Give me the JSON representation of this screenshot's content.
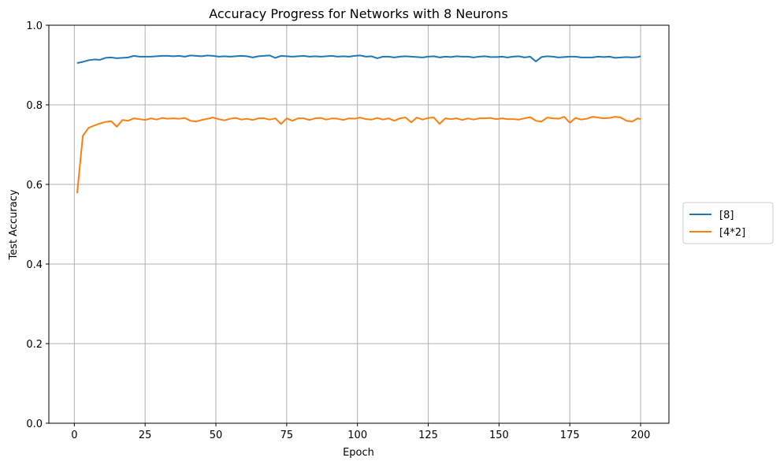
{
  "chart_data": {
    "type": "line",
    "title": "Accuracy Progress for Networks with 8 Neurons",
    "xlabel": "Epoch",
    "ylabel": "Test Accuracy",
    "xlim": [
      -9,
      210
    ],
    "ylim": [
      0.0,
      1.0
    ],
    "xticks": [
      0,
      25,
      50,
      75,
      100,
      125,
      150,
      175,
      200
    ],
    "xtick_labels": [
      "0",
      "25",
      "50",
      "75",
      "100",
      "125",
      "150",
      "175",
      "200"
    ],
    "yticks": [
      0.0,
      0.2,
      0.4,
      0.6,
      0.8,
      1.0
    ],
    "ytick_labels": [
      "0.0",
      "0.2",
      "0.4",
      "0.6",
      "0.8",
      "1.0"
    ],
    "grid": true,
    "legend_position": "outside right, center",
    "x": [
      1,
      3,
      5,
      7,
      9,
      11,
      13,
      15,
      17,
      19,
      21,
      23,
      25,
      27,
      29,
      31,
      33,
      35,
      37,
      39,
      41,
      43,
      45,
      47,
      49,
      51,
      53,
      55,
      57,
      59,
      61,
      63,
      65,
      67,
      69,
      71,
      73,
      75,
      77,
      79,
      81,
      83,
      85,
      87,
      89,
      91,
      93,
      95,
      97,
      99,
      101,
      103,
      105,
      107,
      109,
      111,
      113,
      115,
      117,
      119,
      121,
      123,
      125,
      127,
      129,
      131,
      133,
      135,
      137,
      139,
      141,
      143,
      145,
      147,
      149,
      151,
      153,
      155,
      157,
      159,
      161,
      163,
      165,
      167,
      169,
      171,
      173,
      175,
      177,
      179,
      181,
      183,
      185,
      187,
      189,
      191,
      193,
      195,
      197,
      199,
      200
    ],
    "series": [
      {
        "name": "[8]",
        "color": "#1f77b4",
        "values": [
          0.905,
          0.908,
          0.912,
          0.914,
          0.913,
          0.918,
          0.919,
          0.917,
          0.918,
          0.919,
          0.923,
          0.921,
          0.921,
          0.921,
          0.922,
          0.923,
          0.923,
          0.922,
          0.923,
          0.921,
          0.924,
          0.923,
          0.922,
          0.924,
          0.923,
          0.921,
          0.922,
          0.921,
          0.922,
          0.923,
          0.922,
          0.919,
          0.922,
          0.923,
          0.924,
          0.918,
          0.923,
          0.922,
          0.921,
          0.922,
          0.923,
          0.921,
          0.922,
          0.921,
          0.922,
          0.923,
          0.921,
          0.922,
          0.921,
          0.923,
          0.924,
          0.921,
          0.922,
          0.917,
          0.921,
          0.921,
          0.919,
          0.921,
          0.922,
          0.921,
          0.92,
          0.919,
          0.921,
          0.922,
          0.919,
          0.921,
          0.92,
          0.922,
          0.921,
          0.921,
          0.919,
          0.921,
          0.922,
          0.92,
          0.92,
          0.921,
          0.919,
          0.921,
          0.922,
          0.919,
          0.921,
          0.909,
          0.92,
          0.922,
          0.921,
          0.919,
          0.92,
          0.921,
          0.921,
          0.919,
          0.919,
          0.919,
          0.921,
          0.92,
          0.921,
          0.918,
          0.919,
          0.92,
          0.919,
          0.92,
          0.922
        ]
      },
      {
        "name": "[4*2]",
        "color": "#ff7f0e",
        "values": [
          0.578,
          0.722,
          0.742,
          0.748,
          0.753,
          0.757,
          0.759,
          0.745,
          0.762,
          0.76,
          0.766,
          0.764,
          0.762,
          0.766,
          0.763,
          0.767,
          0.765,
          0.766,
          0.765,
          0.767,
          0.76,
          0.758,
          0.762,
          0.765,
          0.768,
          0.764,
          0.761,
          0.765,
          0.767,
          0.763,
          0.765,
          0.762,
          0.766,
          0.766,
          0.763,
          0.766,
          0.752,
          0.766,
          0.76,
          0.766,
          0.766,
          0.762,
          0.766,
          0.767,
          0.763,
          0.766,
          0.765,
          0.762,
          0.766,
          0.765,
          0.768,
          0.764,
          0.763,
          0.767,
          0.763,
          0.766,
          0.76,
          0.766,
          0.768,
          0.756,
          0.768,
          0.763,
          0.767,
          0.768,
          0.752,
          0.766,
          0.764,
          0.766,
          0.762,
          0.766,
          0.763,
          0.766,
          0.766,
          0.767,
          0.764,
          0.766,
          0.764,
          0.764,
          0.763,
          0.766,
          0.769,
          0.76,
          0.758,
          0.768,
          0.766,
          0.765,
          0.77,
          0.755,
          0.767,
          0.763,
          0.765,
          0.77,
          0.768,
          0.766,
          0.767,
          0.77,
          0.768,
          0.76,
          0.758,
          0.766,
          0.764
        ]
      }
    ]
  }
}
